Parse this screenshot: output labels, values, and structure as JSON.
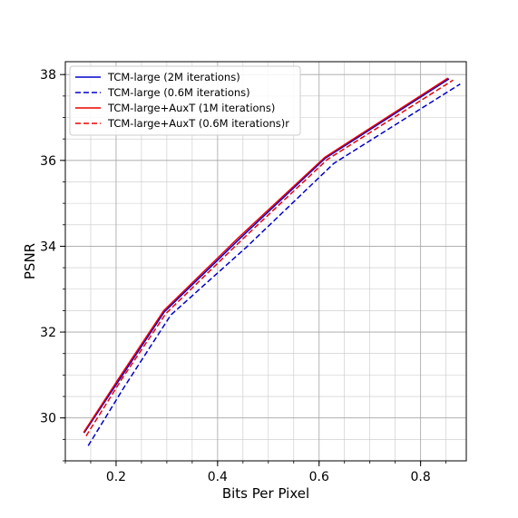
{
  "chart_data": {
    "type": "line",
    "title": "",
    "xlabel": "Bits Per Pixel",
    "ylabel": "PSNR",
    "xlim": [
      0.1,
      0.89
    ],
    "ylim": [
      29.0,
      38.3
    ],
    "xticks": [
      0.2,
      0.4,
      0.6,
      0.8
    ],
    "xtick_labels": [
      "0.2",
      "0.4",
      "0.6",
      "0.8"
    ],
    "yticks": [
      30,
      32,
      34,
      36,
      38
    ],
    "ytick_labels": [
      "30",
      "32",
      "34",
      "36",
      "38"
    ],
    "grid": true,
    "legend_position": "upper-left",
    "series": [
      {
        "name": "TCM-large (2M iterations)",
        "color": "#0000cc",
        "style": "solid",
        "x": [
          0.137,
          0.21,
          0.295,
          0.443,
          0.612,
          0.856
        ],
        "y": [
          29.65,
          30.95,
          32.47,
          34.17,
          36.05,
          37.9
        ]
      },
      {
        "name": "TCM-large (0.6M iterations)",
        "color": "#0000cc",
        "style": "dashed",
        "x": [
          0.145,
          0.215,
          0.308,
          0.457,
          0.629,
          0.878
        ],
        "y": [
          29.35,
          30.7,
          32.4,
          33.98,
          35.93,
          37.78
        ]
      },
      {
        "name": "TCM-large+AuxT (1M iterations)",
        "color": "#ee0000",
        "style": "solid",
        "x": [
          0.136,
          0.208,
          0.294,
          0.441,
          0.611,
          0.854
        ],
        "y": [
          29.66,
          30.97,
          32.5,
          34.2,
          36.07,
          37.92
        ]
      },
      {
        "name": "TCM-large+AuxT (0.6M iterations)r",
        "color": "#ee0000",
        "style": "dashed",
        "x": [
          0.141,
          0.212,
          0.298,
          0.447,
          0.616,
          0.864
        ],
        "y": [
          29.58,
          30.92,
          32.43,
          34.14,
          36.02,
          37.87
        ]
      }
    ]
  }
}
